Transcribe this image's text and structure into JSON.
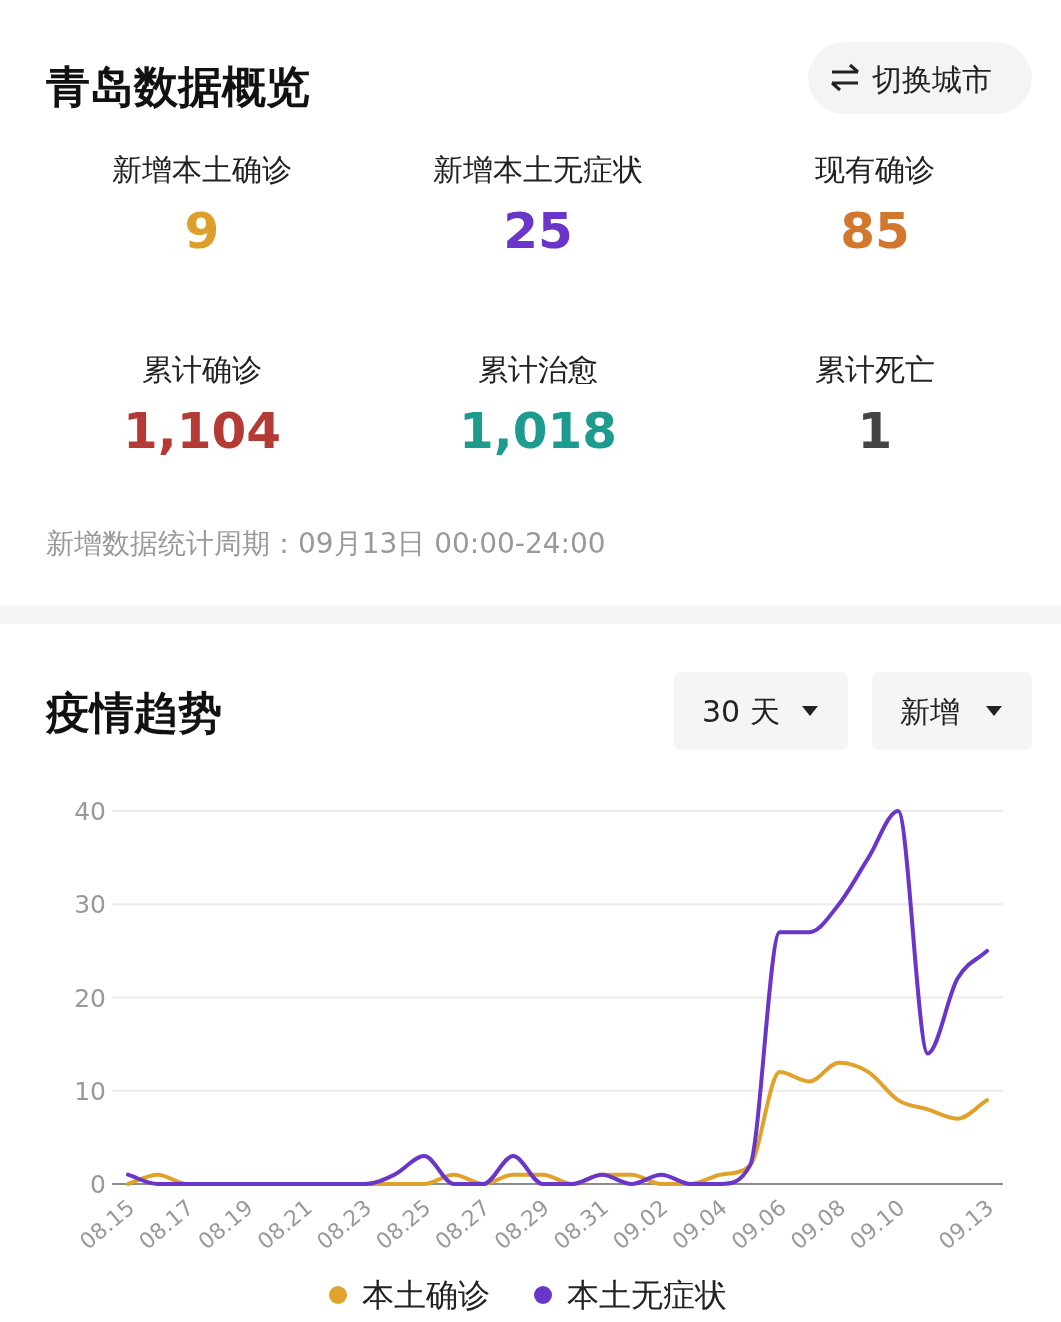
{
  "chart_data": [
    {
      "type": "other",
      "title": "青岛数据概览",
      "categories": [
        "新增本土确诊",
        "新增本土无症状",
        "现有确诊",
        "累计确诊",
        "累计治愈",
        "累计死亡"
      ],
      "value_labels": [
        "9",
        "25",
        "85",
        "1,104",
        "1,018",
        "1"
      ],
      "colors": [
        "#dca02a",
        "#6a35c9",
        "#d2782e",
        "#b43a35",
        "#1e9b8f",
        "#444444"
      ],
      "annotations": [
        "切换城市",
        "新增数据统计周期：09月13日 00:00-24:00"
      ]
    },
    {
      "type": "line",
      "title": "疫情趋势",
      "annotations": [
        "30 天",
        "新增"
      ],
      "categories": [
        "08.15",
        null,
        "08.17",
        null,
        "08.19",
        null,
        "08.21",
        null,
        "08.23",
        null,
        "08.25",
        null,
        "08.27",
        null,
        "08.29",
        null,
        "08.31",
        null,
        "09.02",
        null,
        "09.04",
        null,
        "09.06",
        null,
        "09.08",
        null,
        "09.10",
        null,
        null,
        "09.13"
      ],
      "series": [
        {
          "name": "本土确诊",
          "color": "#e0a22b",
          "values": [
            0,
            1,
            0,
            0,
            0,
            0,
            0,
            0,
            0,
            0,
            0,
            1,
            0,
            1,
            1,
            0,
            1,
            1,
            0,
            0,
            1,
            2,
            12,
            11,
            13,
            12,
            9,
            8,
            7,
            9
          ]
        },
        {
          "name": "本土无症状",
          "color": "#6a35c9",
          "values": [
            1,
            0,
            0,
            0,
            0,
            0,
            0,
            0,
            0,
            1,
            3,
            0,
            0,
            3,
            0,
            0,
            1,
            0,
            1,
            0,
            0,
            2,
            27,
            27,
            30,
            35,
            40,
            14,
            22,
            25
          ]
        }
      ],
      "ylim": [
        0,
        40
      ],
      "yticks": [
        0,
        10,
        20,
        30,
        40
      ],
      "grid": "y",
      "legend": "bottom",
      "marker": "none",
      "line_style": "solid"
    }
  ]
}
